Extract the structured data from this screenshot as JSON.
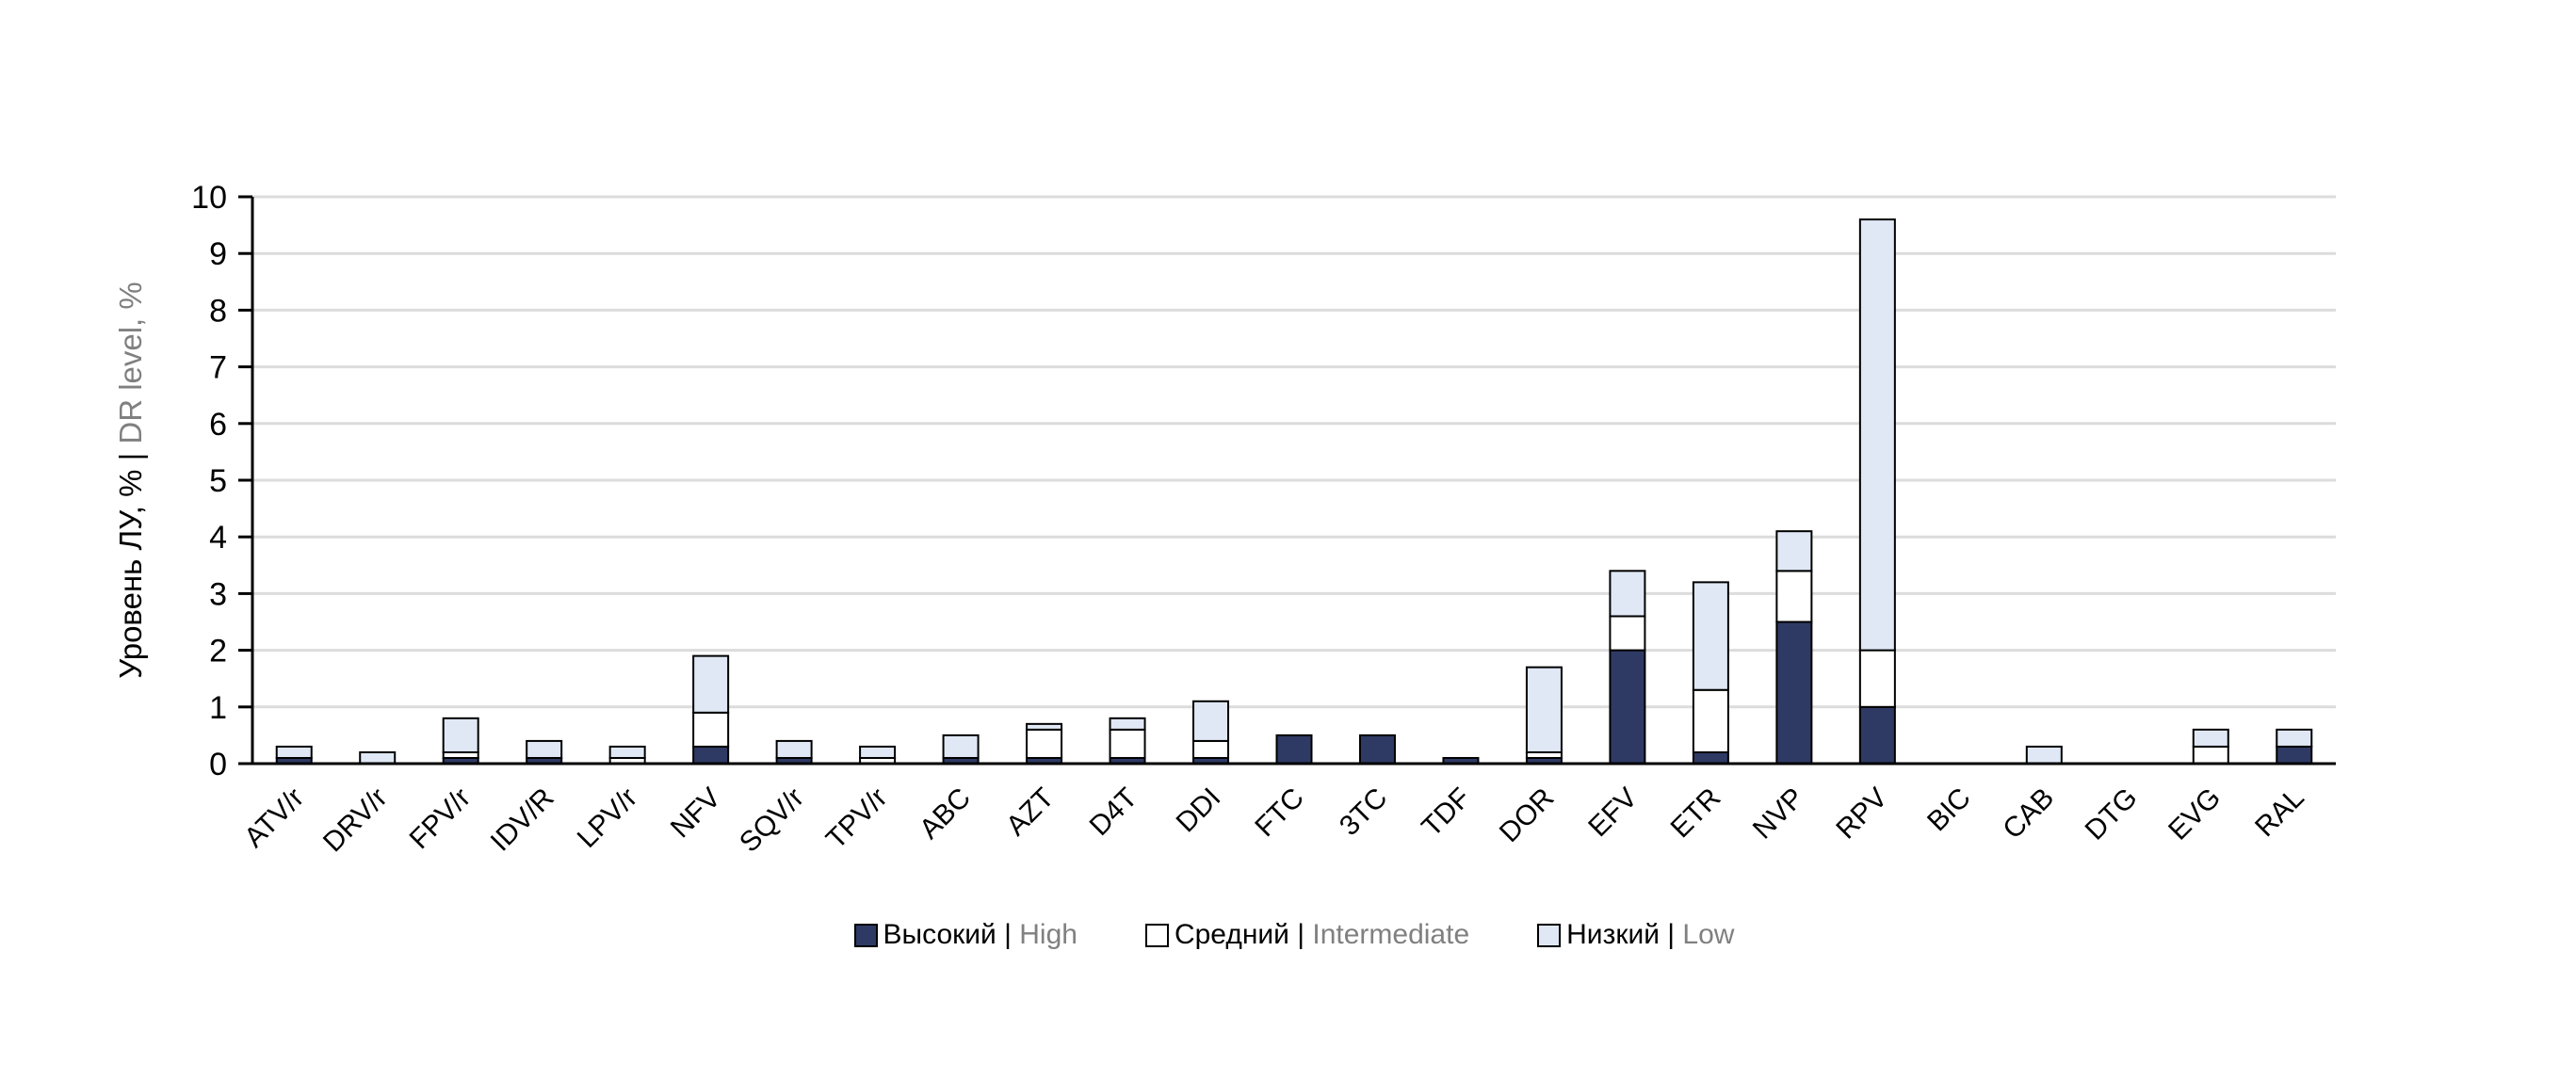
{
  "figure": {
    "background": "#FFFFFF"
  },
  "chart_data": {
    "type": "bar",
    "stacked": true,
    "title": "",
    "categories": [
      "ATV/r",
      "DRV/r",
      "FPV/r",
      "IDV/R",
      "LPV/r",
      "NFV",
      "SQV/r",
      "TPV/r",
      "ABC",
      "AZT",
      "D4T",
      "DDI",
      "FTC",
      "3TC",
      "TDF",
      "DOR",
      "EFV",
      "ETR",
      "NVP",
      "RPV",
      "BIC",
      "CAB",
      "DTG",
      "EVG",
      "RAL"
    ],
    "series": [
      {
        "id": "high",
        "label_ru": "Высокий",
        "label_en": "High",
        "color": "#2F3A64",
        "values": [
          0.1,
          0,
          0.1,
          0.1,
          0,
          0.3,
          0.1,
          0,
          0.1,
          0.1,
          0.1,
          0.1,
          0.5,
          0.5,
          0.1,
          0.1,
          2.0,
          0.2,
          2.5,
          1.0,
          0,
          0,
          0,
          0,
          0.3
        ]
      },
      {
        "id": "intermediate",
        "label_ru": "Средний",
        "label_en": "Intermediate",
        "color": "#FFFFFF",
        "values": [
          0,
          0,
          0.1,
          0,
          0.1,
          0.6,
          0,
          0.1,
          0,
          0.5,
          0.5,
          0.3,
          0,
          0,
          0,
          0.1,
          0.6,
          1.1,
          0.9,
          1.0,
          0,
          0,
          0,
          0.3,
          0
        ]
      },
      {
        "id": "low",
        "label_ru": "Низкий",
        "label_en": "Low",
        "color": "#DFE8F4",
        "values": [
          0.2,
          0.2,
          0.6,
          0.3,
          0.2,
          1.0,
          0.3,
          0.2,
          0.4,
          0.1,
          0.2,
          0.7,
          0,
          0,
          0,
          1.5,
          0.8,
          1.9,
          0.7,
          7.6,
          0,
          0.3,
          0,
          0.3,
          0.3
        ]
      }
    ],
    "label_separator": " | ",
    "ylabel_primary": "Уровень ЛУ, % | ",
    "ylabel_secondary": "DR level, %",
    "ylim": [
      0,
      10
    ],
    "ytick_step": 1,
    "grid": true,
    "legend_position": "bottom",
    "colors": {
      "axis": "#000000",
      "grid": "#DCDCDC",
      "bar_border": "#000000",
      "text_primary": "#000000",
      "text_secondary": "#808080"
    }
  }
}
